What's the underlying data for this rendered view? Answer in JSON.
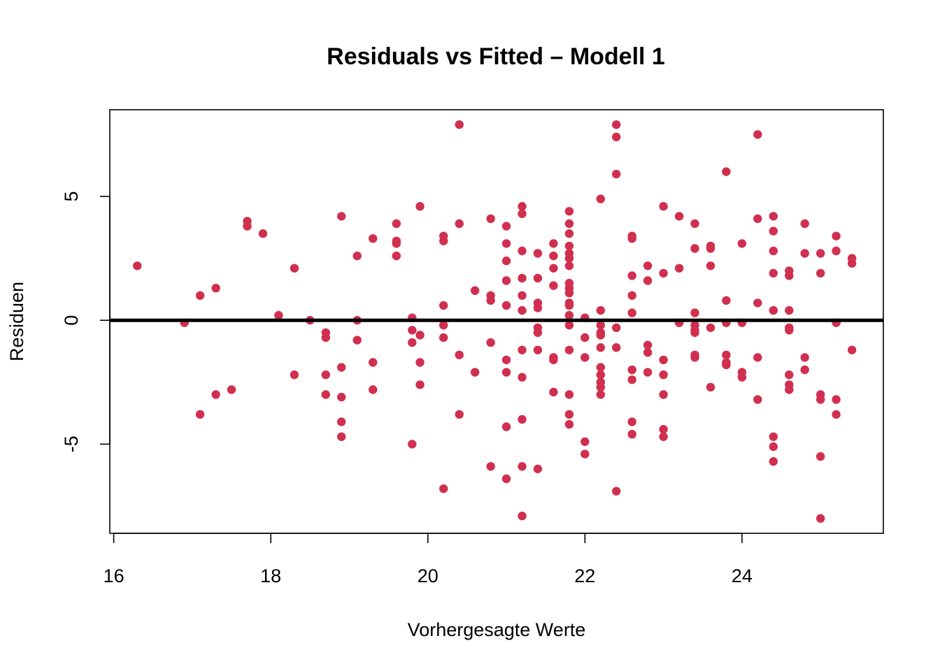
{
  "chart_data": {
    "type": "scatter",
    "title": "Residuals vs Fitted – Modell 1",
    "xlabel": "Vorhergesagte Werte",
    "ylabel": "Residuen",
    "xlim": [
      15.95,
      25.8
    ],
    "ylim": [
      -8.6,
      8.5
    ],
    "x_ticks": [
      16,
      18,
      20,
      22,
      24
    ],
    "y_ticks": [
      -5,
      0,
      5
    ],
    "grid": false,
    "legend": "none",
    "point_color": "#d12f4f",
    "reference_line": {
      "y": 0,
      "color": "#000000"
    },
    "points": [
      [
        16.3,
        2.2
      ],
      [
        16.9,
        -0.1
      ],
      [
        17.1,
        1.0
      ],
      [
        17.1,
        -3.8
      ],
      [
        17.3,
        1.3
      ],
      [
        17.3,
        -3.0
      ],
      [
        17.5,
        -2.8
      ],
      [
        17.7,
        4.0
      ],
      [
        17.7,
        3.8
      ],
      [
        17.9,
        3.5
      ],
      [
        18.1,
        0.2
      ],
      [
        18.3,
        2.1
      ],
      [
        18.3,
        -2.2
      ],
      [
        18.5,
        0.0
      ],
      [
        18.7,
        -0.5
      ],
      [
        18.7,
        -0.7
      ],
      [
        18.7,
        -2.2
      ],
      [
        18.7,
        -3.0
      ],
      [
        18.9,
        4.2
      ],
      [
        18.9,
        -1.9
      ],
      [
        18.9,
        -3.1
      ],
      [
        18.9,
        -4.1
      ],
      [
        18.9,
        -4.7
      ],
      [
        19.1,
        2.6
      ],
      [
        19.1,
        0.0
      ],
      [
        19.1,
        -0.8
      ],
      [
        19.3,
        3.3
      ],
      [
        19.3,
        -1.7
      ],
      [
        19.3,
        -2.8
      ],
      [
        19.6,
        3.9
      ],
      [
        19.6,
        3.2
      ],
      [
        19.6,
        3.1
      ],
      [
        19.6,
        2.6
      ],
      [
        19.8,
        0.1
      ],
      [
        19.8,
        -0.4
      ],
      [
        19.8,
        -0.9
      ],
      [
        19.8,
        -5.0
      ],
      [
        19.9,
        4.6
      ],
      [
        19.9,
        -0.6
      ],
      [
        19.9,
        -1.7
      ],
      [
        19.9,
        -2.6
      ],
      [
        20.2,
        3.4
      ],
      [
        20.2,
        3.2
      ],
      [
        20.2,
        0.6
      ],
      [
        20.2,
        -0.2
      ],
      [
        20.2,
        -0.7
      ],
      [
        20.2,
        -6.8
      ],
      [
        20.4,
        7.9
      ],
      [
        20.4,
        3.9
      ],
      [
        20.4,
        -1.4
      ],
      [
        20.4,
        -3.8
      ],
      [
        20.6,
        1.2
      ],
      [
        20.6,
        -2.1
      ],
      [
        20.8,
        4.1
      ],
      [
        20.8,
        1.0
      ],
      [
        20.8,
        0.8
      ],
      [
        20.8,
        -0.9
      ],
      [
        20.8,
        -5.9
      ],
      [
        21.0,
        3.8
      ],
      [
        21.0,
        3.1
      ],
      [
        21.0,
        2.4
      ],
      [
        21.0,
        1.6
      ],
      [
        21.0,
        0.6
      ],
      [
        21.0,
        -1.6
      ],
      [
        21.0,
        -2.1
      ],
      [
        21.0,
        -4.3
      ],
      [
        21.0,
        -6.4
      ],
      [
        21.2,
        4.6
      ],
      [
        21.2,
        4.3
      ],
      [
        21.2,
        2.8
      ],
      [
        21.2,
        1.7
      ],
      [
        21.2,
        1.0
      ],
      [
        21.2,
        0.4
      ],
      [
        21.2,
        -1.2
      ],
      [
        21.2,
        -2.3
      ],
      [
        21.2,
        -4.0
      ],
      [
        21.2,
        -5.9
      ],
      [
        21.2,
        -7.9
      ],
      [
        21.4,
        2.7
      ],
      [
        21.4,
        1.7
      ],
      [
        21.4,
        0.7
      ],
      [
        21.4,
        0.5
      ],
      [
        21.4,
        -0.3
      ],
      [
        21.4,
        -0.5
      ],
      [
        21.4,
        -1.2
      ],
      [
        21.4,
        -6.0
      ],
      [
        21.6,
        3.1
      ],
      [
        21.6,
        2.6
      ],
      [
        21.6,
        2.1
      ],
      [
        21.6,
        1.4
      ],
      [
        21.6,
        -1.5
      ],
      [
        21.6,
        -1.6
      ],
      [
        21.6,
        -2.9
      ],
      [
        21.8,
        4.4
      ],
      [
        21.8,
        3.9
      ],
      [
        21.8,
        3.5
      ],
      [
        21.8,
        3.0
      ],
      [
        21.8,
        2.7
      ],
      [
        21.8,
        2.5
      ],
      [
        21.8,
        2.2
      ],
      [
        21.8,
        1.5
      ],
      [
        21.8,
        1.3
      ],
      [
        21.8,
        1.1
      ],
      [
        21.8,
        0.7
      ],
      [
        21.8,
        0.6
      ],
      [
        21.8,
        0.2
      ],
      [
        21.8,
        -0.2
      ],
      [
        21.8,
        -1.2
      ],
      [
        21.8,
        -3.0
      ],
      [
        21.8,
        -3.8
      ],
      [
        21.8,
        -4.2
      ],
      [
        22.0,
        0.1
      ],
      [
        22.0,
        -0.7
      ],
      [
        22.0,
        -1.5
      ],
      [
        22.0,
        -4.9
      ],
      [
        22.0,
        -5.4
      ],
      [
        22.2,
        4.9
      ],
      [
        22.2,
        0.4
      ],
      [
        22.2,
        -0.2
      ],
      [
        22.2,
        -0.5
      ],
      [
        22.2,
        -0.6
      ],
      [
        22.2,
        -1.1
      ],
      [
        22.2,
        -1.9
      ],
      [
        22.2,
        -2.2
      ],
      [
        22.2,
        -2.5
      ],
      [
        22.2,
        -2.7
      ],
      [
        22.2,
        -3.0
      ],
      [
        22.4,
        7.9
      ],
      [
        22.4,
        7.4
      ],
      [
        22.4,
        5.9
      ],
      [
        22.4,
        -0.3
      ],
      [
        22.4,
        -1.1
      ],
      [
        22.4,
        -6.9
      ],
      [
        22.6,
        3.4
      ],
      [
        22.6,
        3.3
      ],
      [
        22.6,
        1.8
      ],
      [
        22.6,
        1.0
      ],
      [
        22.6,
        0.3
      ],
      [
        22.6,
        -2.0
      ],
      [
        22.6,
        -2.4
      ],
      [
        22.6,
        -4.1
      ],
      [
        22.6,
        -4.6
      ],
      [
        22.8,
        2.2
      ],
      [
        22.8,
        1.6
      ],
      [
        22.8,
        -1.0
      ],
      [
        22.8,
        -1.3
      ],
      [
        22.8,
        -2.1
      ],
      [
        23.0,
        4.6
      ],
      [
        23.0,
        1.9
      ],
      [
        23.0,
        -1.6
      ],
      [
        23.0,
        -2.2
      ],
      [
        23.0,
        -3.0
      ],
      [
        23.0,
        -4.4
      ],
      [
        23.0,
        -4.7
      ],
      [
        23.2,
        4.2
      ],
      [
        23.2,
        2.1
      ],
      [
        23.2,
        -0.1
      ],
      [
        23.4,
        3.9
      ],
      [
        23.4,
        2.9
      ],
      [
        23.4,
        0.3
      ],
      [
        23.4,
        -0.2
      ],
      [
        23.4,
        -0.4
      ],
      [
        23.4,
        -0.5
      ],
      [
        23.4,
        -1.4
      ],
      [
        23.4,
        -1.5
      ],
      [
        23.6,
        3.0
      ],
      [
        23.6,
        2.9
      ],
      [
        23.6,
        2.2
      ],
      [
        23.6,
        -0.3
      ],
      [
        23.6,
        -2.7
      ],
      [
        23.8,
        6.0
      ],
      [
        23.8,
        0.8
      ],
      [
        23.8,
        -0.1
      ],
      [
        23.8,
        -1.4
      ],
      [
        23.8,
        -1.7
      ],
      [
        23.8,
        -1.8
      ],
      [
        24.0,
        3.1
      ],
      [
        24.0,
        -0.1
      ],
      [
        24.0,
        -2.1
      ],
      [
        24.0,
        -2.3
      ],
      [
        24.2,
        7.5
      ],
      [
        24.2,
        4.1
      ],
      [
        24.2,
        0.7
      ],
      [
        24.2,
        -1.5
      ],
      [
        24.2,
        -3.2
      ],
      [
        24.4,
        4.2
      ],
      [
        24.4,
        3.6
      ],
      [
        24.4,
        2.8
      ],
      [
        24.4,
        1.9
      ],
      [
        24.4,
        0.4
      ],
      [
        24.4,
        -4.7
      ],
      [
        24.4,
        -5.1
      ],
      [
        24.4,
        -5.7
      ],
      [
        24.6,
        2.0
      ],
      [
        24.6,
        1.8
      ],
      [
        24.6,
        0.4
      ],
      [
        24.6,
        -0.3
      ],
      [
        24.6,
        -0.4
      ],
      [
        24.6,
        -2.2
      ],
      [
        24.6,
        -2.6
      ],
      [
        24.6,
        -2.8
      ],
      [
        24.8,
        3.9
      ],
      [
        24.8,
        2.7
      ],
      [
        24.8,
        -1.5
      ],
      [
        24.8,
        -2.0
      ],
      [
        25.0,
        2.7
      ],
      [
        25.0,
        1.9
      ],
      [
        25.0,
        -3.0
      ],
      [
        25.0,
        -3.2
      ],
      [
        25.0,
        -5.5
      ],
      [
        25.0,
        -8.0
      ],
      [
        25.2,
        3.4
      ],
      [
        25.2,
        2.8
      ],
      [
        25.2,
        -0.1
      ],
      [
        25.2,
        -3.2
      ],
      [
        25.2,
        -3.8
      ],
      [
        25.4,
        2.5
      ],
      [
        25.4,
        2.3
      ],
      [
        25.4,
        -1.2
      ]
    ]
  }
}
